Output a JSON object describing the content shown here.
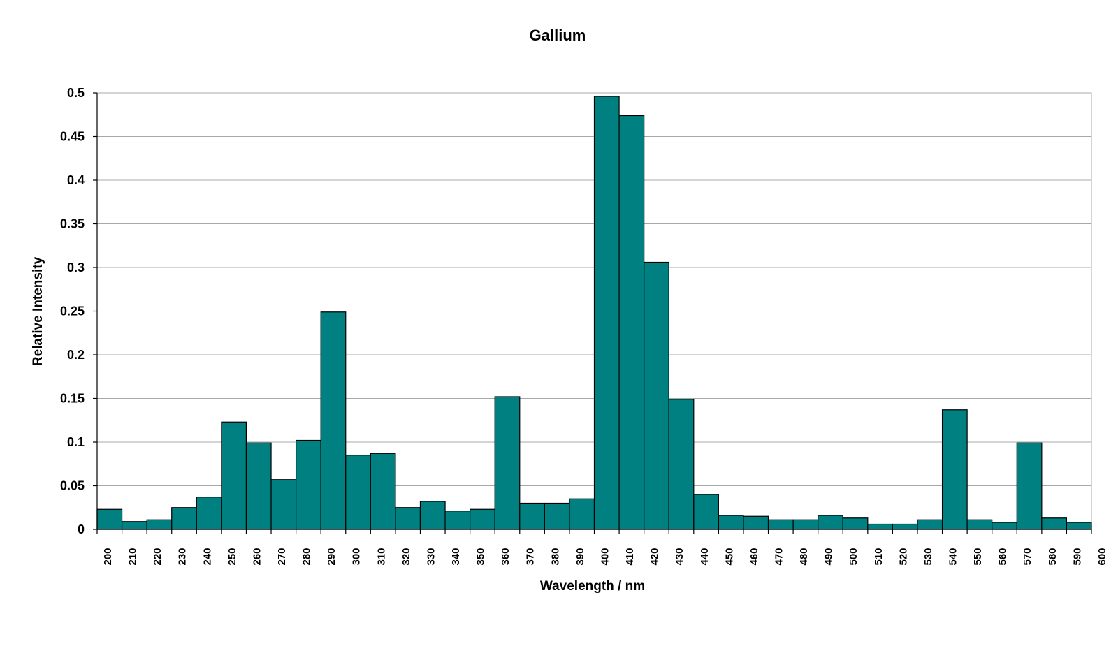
{
  "chart_data": {
    "type": "bar",
    "title": "Gallium",
    "xlabel": "Wavelength / nm",
    "ylabel": "Relative Intensity",
    "ylim": [
      0,
      0.5
    ],
    "yticks": [
      "0",
      "0.05",
      "0.1",
      "0.15",
      "0.2",
      "0.25",
      "0.3",
      "0.35",
      "0.4",
      "0.45",
      "0.5"
    ],
    "grid": true,
    "bar_color": "#008080",
    "xticks": [
      "200",
      "210",
      "220",
      "230",
      "240",
      "250",
      "260",
      "270",
      "280",
      "290",
      "300",
      "310",
      "320",
      "330",
      "340",
      "350",
      "360",
      "370",
      "380",
      "390",
      "400",
      "410",
      "420",
      "430",
      "440",
      "450",
      "460",
      "470",
      "480",
      "490",
      "500",
      "510",
      "520",
      "530",
      "540",
      "550",
      "560",
      "570",
      "580",
      "590",
      "600"
    ],
    "categories": [
      "200",
      "210",
      "220",
      "230",
      "240",
      "250",
      "260",
      "270",
      "280",
      "290",
      "300",
      "310",
      "320",
      "330",
      "340",
      "350",
      "360",
      "370",
      "380",
      "390",
      "400",
      "410",
      "420",
      "430",
      "440",
      "450",
      "460",
      "470",
      "480",
      "490",
      "500",
      "510",
      "520",
      "530",
      "540",
      "550",
      "560",
      "570",
      "580",
      "590"
    ],
    "values": [
      0.023,
      0.009,
      0.011,
      0.025,
      0.037,
      0.123,
      0.099,
      0.057,
      0.102,
      0.249,
      0.085,
      0.087,
      0.025,
      0.032,
      0.021,
      0.023,
      0.152,
      0.03,
      0.03,
      0.035,
      0.496,
      0.474,
      0.306,
      0.149,
      0.04,
      0.016,
      0.015,
      0.011,
      0.011,
      0.016,
      0.013,
      0.006,
      0.006,
      0.011,
      0.137,
      0.011,
      0.008,
      0.099,
      0.013,
      0.008
    ]
  }
}
